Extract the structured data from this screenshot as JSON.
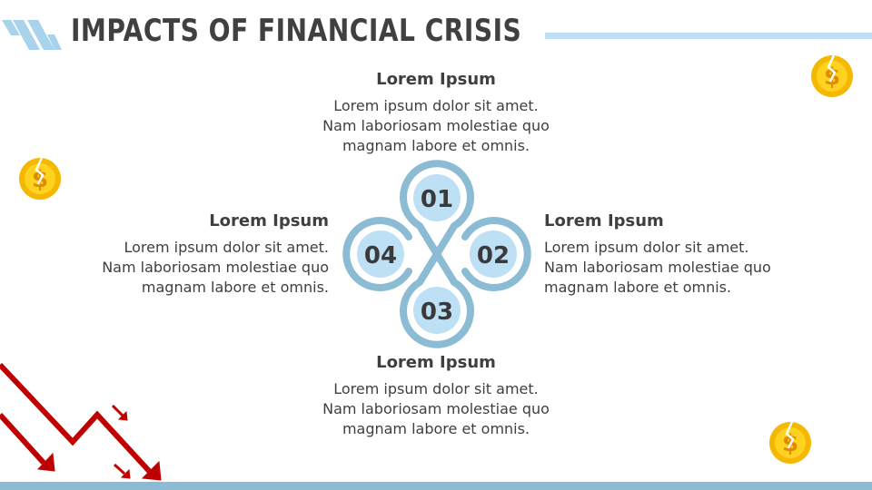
{
  "title": "IMPACTS OF FINANCIAL CRISIS",
  "colors": {
    "accent_light": "#bde0f5",
    "accent": "#8bbcd3",
    "arrow": "#c00000",
    "coin": "#f5b800"
  },
  "items": [
    {
      "number": "01",
      "heading": "Lorem Ipsum",
      "text": "Lorem ipsum dolor sit amet. Nam laboriosam molestiae quo magnam labore et omnis."
    },
    {
      "number": "02",
      "heading": "Lorem Ipsum",
      "text": "Lorem ipsum dolor sit amet. Nam laboriosam molestiae quo magnam labore et omnis."
    },
    {
      "number": "03",
      "heading": "Lorem Ipsum",
      "text": "Lorem ipsum dolor sit amet. Nam laboriosam molestiae quo magnam labore et omnis."
    },
    {
      "number": "04",
      "heading": "Lorem Ipsum",
      "text": "Lorem ipsum dolor sit amet. Nam laboriosam molestiae quo magnam labore et omnis."
    }
  ],
  "icons": [
    "stripes-logo-icon",
    "broken-coin-icon",
    "down-trend-arrows-icon"
  ]
}
